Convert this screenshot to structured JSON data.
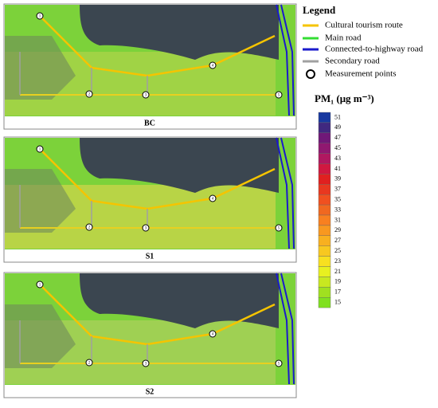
{
  "panels": [
    {
      "label": "BC"
    },
    {
      "label": "S1"
    },
    {
      "label": "S2"
    }
  ],
  "measurement_points": [
    "1",
    "2",
    "3",
    "4",
    "5"
  ],
  "legend": {
    "title": "Legend",
    "items": [
      {
        "label": "Cultural tourism route",
        "color": "#f5c400",
        "kind": "line"
      },
      {
        "label": "Main road",
        "color": "#33dd33",
        "kind": "line"
      },
      {
        "label": "Connected-to-highway road",
        "color": "#1a1acc",
        "kind": "line"
      },
      {
        "label": "Secondary road",
        "color": "#a0a0a0",
        "kind": "line"
      },
      {
        "label": "Measurement points",
        "color": "#000000",
        "kind": "circle"
      }
    ]
  },
  "colorbar": {
    "title": "PM₁ (μg m⁻³)",
    "ticks": [
      51,
      49,
      47,
      45,
      43,
      41,
      39,
      37,
      35,
      33,
      31,
      29,
      27,
      25,
      23,
      21,
      19,
      17,
      15
    ],
    "colors": [
      "#1838a0",
      "#402880",
      "#701878",
      "#901870",
      "#b01860",
      "#d01840",
      "#e02020",
      "#e83820",
      "#f05020",
      "#f06820",
      "#f88020",
      "#f89820",
      "#f8b020",
      "#f8c820",
      "#f8e020",
      "#e8f020",
      "#c8e820",
      "#a0e020",
      "#80e020"
    ]
  }
}
